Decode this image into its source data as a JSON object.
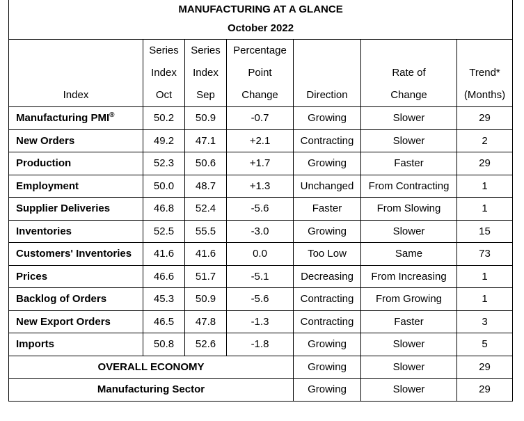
{
  "title": "MANUFACTURING AT A GLANCE",
  "subtitle": "October 2022",
  "headers": {
    "index": "Index",
    "oct": [
      "Series",
      "Index",
      "Oct"
    ],
    "sep": [
      "Series",
      "Index",
      "Sep"
    ],
    "change": [
      "Percentage",
      "Point",
      "Change"
    ],
    "direction": "Direction",
    "rate": [
      "Rate of",
      "Change"
    ],
    "trend": [
      "Trend*",
      "(Months)"
    ]
  },
  "rows": [
    {
      "index": "Manufacturing PMI",
      "sup": "®",
      "oct": "50.2",
      "sep": "50.9",
      "change": "-0.7",
      "direction": "Growing",
      "rate": "Slower",
      "trend": "29"
    },
    {
      "index": "New Orders",
      "oct": "49.2",
      "sep": "47.1",
      "change": "+2.1",
      "direction": "Contracting",
      "rate": "Slower",
      "trend": "2"
    },
    {
      "index": "Production",
      "oct": "52.3",
      "sep": "50.6",
      "change": "+1.7",
      "direction": "Growing",
      "rate": "Faster",
      "trend": "29"
    },
    {
      "index": "Employment",
      "oct": "50.0",
      "sep": "48.7",
      "change": "+1.3",
      "direction": "Unchanged",
      "rate": "From Contracting",
      "trend": "1"
    },
    {
      "index": "Supplier Deliveries",
      "oct": "46.8",
      "sep": "52.4",
      "change": "-5.6",
      "direction": "Faster",
      "rate": "From Slowing",
      "trend": "1"
    },
    {
      "index": "Inventories",
      "oct": "52.5",
      "sep": "55.5",
      "change": "-3.0",
      "direction": "Growing",
      "rate": "Slower",
      "trend": "15"
    },
    {
      "index": "Customers' Inventories",
      "oct": "41.6",
      "sep": "41.6",
      "change": "0.0",
      "direction": "Too Low",
      "rate": "Same",
      "trend": "73"
    },
    {
      "index": "Prices",
      "oct": "46.6",
      "sep": "51.7",
      "change": "-5.1",
      "direction": "Decreasing",
      "rate": "From Increasing",
      "trend": "1"
    },
    {
      "index": "Backlog of Orders",
      "oct": "45.3",
      "sep": "50.9",
      "change": "-5.6",
      "direction": "Contracting",
      "rate": "From Growing",
      "trend": "1"
    },
    {
      "index": "New Export Orders",
      "oct": "46.5",
      "sep": "47.8",
      "change": "-1.3",
      "direction": "Contracting",
      "rate": "Faster",
      "trend": "3"
    },
    {
      "index": "Imports",
      "oct": "50.8",
      "sep": "52.6",
      "change": "-1.8",
      "direction": "Growing",
      "rate": "Slower",
      "trend": "5"
    }
  ],
  "summary": [
    {
      "label": "OVERALL ECONOMY",
      "direction": "Growing",
      "rate": "Slower",
      "trend": "29"
    },
    {
      "label": "Manufacturing Sector",
      "direction": "Growing",
      "rate": "Slower",
      "trend": "29"
    }
  ]
}
